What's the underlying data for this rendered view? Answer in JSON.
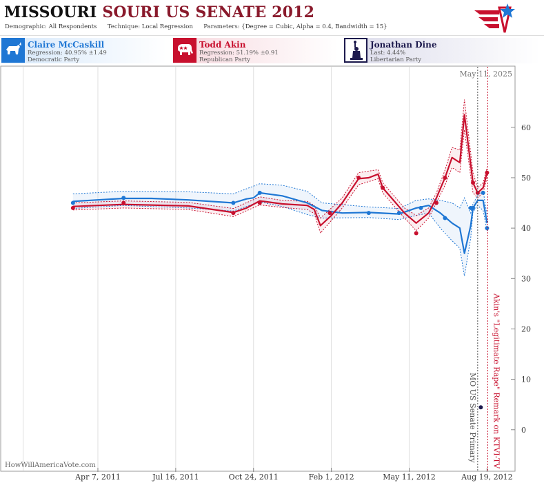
{
  "title": {
    "state": "MISSOURI",
    "rest": "SOURI US SENATE 2012"
  },
  "params": {
    "demographic_label": "Demographic:",
    "demographic": "All Respondents",
    "technique_label": "Technique:",
    "technique": "Local Regression",
    "parameters_label": "Parameters:",
    "parameters": "{Degree = Cubic, Alpha = 0.4, Bandwidth = 15}"
  },
  "candidates": [
    {
      "name": "Claire McCaskill",
      "line2": "Regression: 40.95% ±1.49",
      "line3": "Democratic Party",
      "color": "#1f77d4",
      "icon": "donkey-icon"
    },
    {
      "name": "Todd Akin",
      "line2": "Regression: 51.19% ±0.91",
      "line3": "Republican Party",
      "color": "#c8102e",
      "icon": "elephant-icon"
    },
    {
      "name": "Jonathan Dine",
      "line2": "Last: 4.44%",
      "line3": "Libertarian Party",
      "color": "#1d1a4d",
      "icon": "liberty-statue-icon"
    }
  ],
  "colors": {
    "dem": "#1f77d4",
    "rep": "#c8102e",
    "lib": "#1d1a4d"
  },
  "chart_data": {
    "type": "line",
    "date_stamp": "May 11, 2025",
    "watermark": "HowWillAmericaVote.com",
    "x_ticks": [
      {
        "date": "2011-04-07",
        "label": "Apr 7, 2011"
      },
      {
        "date": "2011-07-16",
        "label": "Jul 16, 2011"
      },
      {
        "date": "2011-10-24",
        "label": "Oct 24, 2011"
      },
      {
        "date": "2012-02-01",
        "label": "Feb 1, 2012"
      },
      {
        "date": "2012-05-11",
        "label": "May 11, 2012"
      },
      {
        "date": "2012-08-19",
        "label": "Aug 19, 2012"
      }
    ],
    "x_gridlines": [
      "2011-01-01",
      "2011-04-07",
      "2011-07-16",
      "2011-10-24",
      "2012-02-01",
      "2012-05-11"
    ],
    "xlim": [
      "2010-12-04",
      "2012-09-24"
    ],
    "ylim": [
      -7,
      72
    ],
    "y_ticks": [
      0,
      10,
      20,
      30,
      40,
      50,
      60
    ],
    "events": [
      {
        "date": "2012-08-07",
        "label": "MO US Senate Primary",
        "color": "#555555"
      },
      {
        "date": "2012-08-20",
        "label": "Akin's \"Legitimate Rape\" Remark on KTVI-TV",
        "color": "#c8102e"
      }
    ],
    "series": [
      {
        "name": "Claire McCaskill",
        "color": "#1f77d4",
        "points": [
          [
            "2011-03-06",
            45
          ],
          [
            "2011-05-10",
            46
          ],
          [
            "2011-09-28",
            45
          ],
          [
            "2011-11-01",
            47
          ],
          [
            "2012-01-30",
            43
          ],
          [
            "2012-03-20",
            43
          ],
          [
            "2012-04-28",
            43
          ],
          [
            "2012-05-26",
            44
          ],
          [
            "2012-06-26",
            42
          ],
          [
            "2012-07-29",
            44
          ],
          [
            "2012-08-01",
            44
          ],
          [
            "2012-08-14",
            47
          ],
          [
            "2012-08-19",
            40
          ]
        ],
        "trend": [
          [
            "2011-03-06",
            45.3
          ],
          [
            "2011-05-10",
            45.9
          ],
          [
            "2011-06-15",
            45.9
          ],
          [
            "2011-08-01",
            45.6
          ],
          [
            "2011-09-28",
            45.0
          ],
          [
            "2011-10-15",
            45.8
          ],
          [
            "2011-10-24",
            46.0
          ],
          [
            "2011-11-01",
            47.0
          ],
          [
            "2011-11-30",
            46.4
          ],
          [
            "2012-01-01",
            45.0
          ],
          [
            "2012-01-20",
            43.5
          ],
          [
            "2012-02-15",
            43.0
          ],
          [
            "2012-03-20",
            43.1
          ],
          [
            "2012-04-28",
            42.8
          ],
          [
            "2012-05-20",
            44.0
          ],
          [
            "2012-06-05",
            44.5
          ],
          [
            "2012-06-20",
            43.0
          ],
          [
            "2012-07-05",
            41.0
          ],
          [
            "2012-07-15",
            40.0
          ],
          [
            "2012-07-21",
            35.0
          ],
          [
            "2012-07-29",
            40.5
          ],
          [
            "2012-08-01",
            44.0
          ],
          [
            "2012-08-07",
            45.5
          ],
          [
            "2012-08-14",
            45.5
          ],
          [
            "2012-08-19",
            41.0
          ]
        ],
        "upper": [
          [
            "2011-03-06",
            46.8
          ],
          [
            "2011-05-10",
            47.3
          ],
          [
            "2011-08-01",
            47.2
          ],
          [
            "2011-09-28",
            46.8
          ],
          [
            "2011-11-01",
            48.8
          ],
          [
            "2011-11-30",
            48.5
          ],
          [
            "2012-01-01",
            47.3
          ],
          [
            "2012-01-20",
            45.0
          ],
          [
            "2012-03-20",
            44.2
          ],
          [
            "2012-04-28",
            43.9
          ],
          [
            "2012-05-20",
            45.5
          ],
          [
            "2012-06-05",
            45.8
          ],
          [
            "2012-06-20",
            45.5
          ],
          [
            "2012-07-05",
            45.0
          ],
          [
            "2012-07-15",
            44.0
          ],
          [
            "2012-07-21",
            46.0
          ],
          [
            "2012-07-29",
            43.0
          ],
          [
            "2012-08-01",
            44.8
          ],
          [
            "2012-08-07",
            46.5
          ],
          [
            "2012-08-14",
            47.5
          ],
          [
            "2012-08-19",
            42.5
          ]
        ],
        "lower": [
          [
            "2011-03-06",
            43.9
          ],
          [
            "2011-05-10",
            44.5
          ],
          [
            "2011-08-01",
            44.0
          ],
          [
            "2011-09-28",
            43.4
          ],
          [
            "2011-11-01",
            45.2
          ],
          [
            "2011-11-30",
            44.3
          ],
          [
            "2012-01-01",
            42.7
          ],
          [
            "2012-01-20",
            42.0
          ],
          [
            "2012-03-20",
            42.1
          ],
          [
            "2012-04-28",
            41.7
          ],
          [
            "2012-05-20",
            42.5
          ],
          [
            "2012-06-05",
            43.0
          ],
          [
            "2012-06-20",
            40.0
          ],
          [
            "2012-07-05",
            37.5
          ],
          [
            "2012-07-15",
            36.0
          ],
          [
            "2012-07-21",
            30.5
          ],
          [
            "2012-07-29",
            38.0
          ],
          [
            "2012-08-01",
            43.2
          ],
          [
            "2012-08-07",
            44.5
          ],
          [
            "2012-08-14",
            43.5
          ],
          [
            "2012-08-19",
            39.5
          ]
        ]
      },
      {
        "name": "Todd Akin",
        "color": "#c8102e",
        "points": [
          [
            "2011-03-06",
            44
          ],
          [
            "2011-05-10",
            45
          ],
          [
            "2011-09-28",
            43
          ],
          [
            "2011-11-01",
            45
          ],
          [
            "2012-01-30",
            43
          ],
          [
            "2012-03-07",
            50
          ],
          [
            "2012-04-07",
            48
          ],
          [
            "2012-05-20",
            39
          ],
          [
            "2012-06-15",
            45
          ],
          [
            "2012-06-26",
            50
          ],
          [
            "2012-08-01",
            49
          ],
          [
            "2012-08-07",
            47
          ],
          [
            "2012-08-19",
            51
          ]
        ],
        "trend": [
          [
            "2011-03-06",
            44.3
          ],
          [
            "2011-05-10",
            44.7
          ],
          [
            "2011-08-01",
            44.4
          ],
          [
            "2011-09-28",
            43.1
          ],
          [
            "2011-10-15",
            44.0
          ],
          [
            "2011-11-01",
            45.4
          ],
          [
            "2011-11-30",
            44.8
          ],
          [
            "2012-01-01",
            44.5
          ],
          [
            "2012-01-10",
            43.7
          ],
          [
            "2012-01-18",
            40.5
          ],
          [
            "2012-02-01",
            42.5
          ],
          [
            "2012-02-15",
            45.0
          ],
          [
            "2012-03-07",
            49.8
          ],
          [
            "2012-03-20",
            50.0
          ],
          [
            "2012-04-01",
            50.7
          ],
          [
            "2012-04-07",
            48.0
          ],
          [
            "2012-05-05",
            43.0
          ],
          [
            "2012-05-20",
            41.0
          ],
          [
            "2012-06-05",
            43.0
          ],
          [
            "2012-06-15",
            46.0
          ],
          [
            "2012-06-26",
            50.0
          ],
          [
            "2012-07-05",
            54.0
          ],
          [
            "2012-07-15",
            53.0
          ],
          [
            "2012-07-21",
            62.5
          ],
          [
            "2012-08-01",
            49.0
          ],
          [
            "2012-08-07",
            47.0
          ],
          [
            "2012-08-14",
            48.0
          ],
          [
            "2012-08-19",
            51.0
          ]
        ],
        "upper": [
          [
            "2011-03-06",
            45.0
          ],
          [
            "2011-05-10",
            45.4
          ],
          [
            "2011-08-01",
            45.1
          ],
          [
            "2011-09-28",
            43.9
          ],
          [
            "2011-11-01",
            46.2
          ],
          [
            "2011-11-30",
            45.5
          ],
          [
            "2012-01-01",
            45.3
          ],
          [
            "2012-01-10",
            44.5
          ],
          [
            "2012-01-18",
            42.0
          ],
          [
            "2012-02-15",
            46.0
          ],
          [
            "2012-03-07",
            51.0
          ],
          [
            "2012-04-01",
            51.6
          ],
          [
            "2012-04-07",
            49.0
          ],
          [
            "2012-05-05",
            44.0
          ],
          [
            "2012-05-20",
            42.5
          ],
          [
            "2012-06-05",
            44.0
          ],
          [
            "2012-06-15",
            47.0
          ],
          [
            "2012-06-26",
            51.5
          ],
          [
            "2012-07-05",
            56.0
          ],
          [
            "2012-07-15",
            55.5
          ],
          [
            "2012-07-21",
            65.5
          ],
          [
            "2012-08-01",
            51.0
          ],
          [
            "2012-08-07",
            48.0
          ],
          [
            "2012-08-14",
            49.0
          ],
          [
            "2012-08-19",
            52.0
          ]
        ],
        "lower": [
          [
            "2011-03-06",
            43.6
          ],
          [
            "2011-05-10",
            44.0
          ],
          [
            "2011-08-01",
            43.7
          ],
          [
            "2011-09-28",
            42.3
          ],
          [
            "2011-11-01",
            44.6
          ],
          [
            "2011-11-30",
            44.1
          ],
          [
            "2012-01-01",
            43.7
          ],
          [
            "2012-01-10",
            42.9
          ],
          [
            "2012-01-18",
            39.0
          ],
          [
            "2012-02-15",
            44.0
          ],
          [
            "2012-03-07",
            48.6
          ],
          [
            "2012-04-01",
            49.8
          ],
          [
            "2012-04-07",
            47.0
          ],
          [
            "2012-05-05",
            42.0
          ],
          [
            "2012-05-20",
            39.5
          ],
          [
            "2012-06-05",
            42.0
          ],
          [
            "2012-06-15",
            45.0
          ],
          [
            "2012-06-26",
            48.5
          ],
          [
            "2012-07-05",
            52.0
          ],
          [
            "2012-07-15",
            51.0
          ],
          [
            "2012-07-21",
            59.5
          ],
          [
            "2012-08-01",
            47.0
          ],
          [
            "2012-08-07",
            46.0
          ],
          [
            "2012-08-14",
            47.0
          ],
          [
            "2012-08-19",
            50.0
          ]
        ]
      },
      {
        "name": "Jonathan Dine",
        "color": "#1d1a4d",
        "points": [
          [
            "2012-08-11",
            4.44
          ]
        ]
      }
    ]
  }
}
